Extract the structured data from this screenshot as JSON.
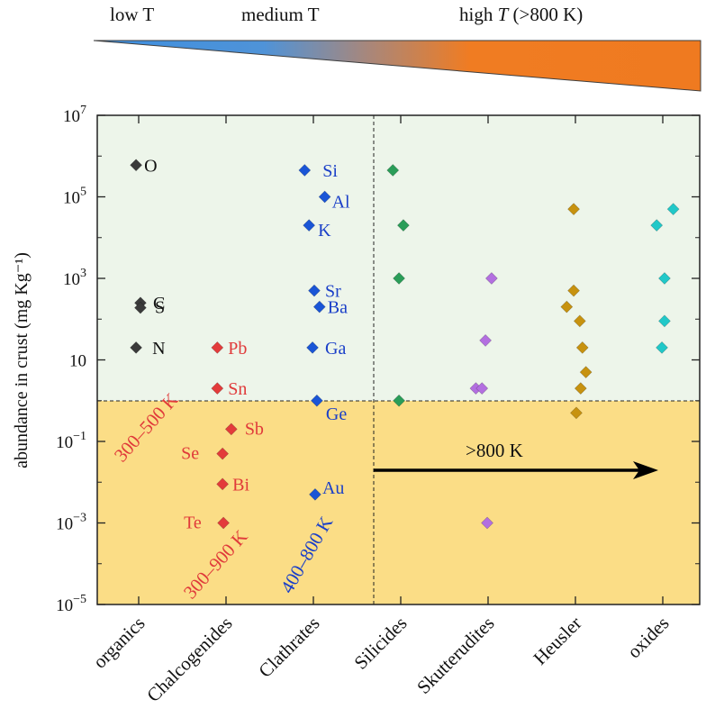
{
  "header": {
    "low": "low T",
    "medium": "medium T",
    "high_prefix": "high ",
    "high_T": "T",
    "high_suffix": " (>800 K)"
  },
  "colors": {
    "upper_band": "#edf5ea",
    "lower_band": "#fbdd86",
    "organics": "#3a3a3a",
    "chalcogenides": "#e33b3b",
    "clathrates": "#1a55d6",
    "silicides": "#2a9d58",
    "skutterudites": "#b36fe0",
    "heusler": "#c7920f",
    "oxides": "#21c8c8",
    "gradient_start": "#3d8fe0",
    "gradient_end": "#f07c22"
  },
  "chart_data": {
    "type": "scatter",
    "ylabel": "abundance in crust (mg Kg⁻¹)",
    "yscale": "log",
    "ylim": [
      1e-05,
      10000000.0
    ],
    "yticks": [
      {
        "base": "10",
        "exp": "7"
      },
      {
        "base": "10",
        "exp": "5"
      },
      {
        "base": "10",
        "exp": "3"
      },
      {
        "base": "10",
        "exp": ""
      },
      {
        "base": "10",
        "exp": "−1"
      },
      {
        "base": "10",
        "exp": "−3"
      },
      {
        "base": "10",
        "exp": "−5"
      }
    ],
    "categories": [
      "organics",
      "Chalcogenides",
      "Clathrates",
      "Silicides",
      "Skutterudites",
      "Heusler",
      "oxides"
    ],
    "threshold": 1,
    "annotations": {
      "organics_range": "300–500 K",
      "chalcogenides_range": "300–900 K",
      "clathrates_range": "400–800 K",
      "high_range": ">800 K"
    },
    "series": [
      {
        "name": "organics",
        "points": [
          {
            "category": 0,
            "offset": -0.03,
            "value": 600000,
            "label": "O"
          },
          {
            "category": 0,
            "offset": 0.02,
            "value": 250,
            "label": "C"
          },
          {
            "category": 0,
            "offset": 0.02,
            "value": 190,
            "label": "S"
          },
          {
            "category": 0,
            "offset": -0.03,
            "value": 20,
            "label": "N"
          }
        ]
      },
      {
        "name": "chalcogenides",
        "points": [
          {
            "category": 1,
            "offset": -0.1,
            "value": 20,
            "label": "Pb"
          },
          {
            "category": 1,
            "offset": -0.1,
            "value": 2,
            "label": "Sn"
          },
          {
            "category": 1,
            "offset": 0.06,
            "value": 0.2,
            "label": "Sb"
          },
          {
            "category": 1,
            "offset": -0.04,
            "value": 0.05,
            "label": "Se"
          },
          {
            "category": 1,
            "offset": -0.04,
            "value": 0.009,
            "label": "Bi"
          },
          {
            "category": 1,
            "offset": -0.03,
            "value": 0.001,
            "label": "Te"
          }
        ]
      },
      {
        "name": "clathrates",
        "points": [
          {
            "category": 2,
            "offset": -0.1,
            "value": 450000,
            "label": "Si"
          },
          {
            "category": 2,
            "offset": 0.13,
            "value": 100000,
            "label": "Al"
          },
          {
            "category": 2,
            "offset": -0.05,
            "value": 20000,
            "label": "K"
          },
          {
            "category": 2,
            "offset": 0.01,
            "value": 500,
            "label": "Sr"
          },
          {
            "category": 2,
            "offset": 0.07,
            "value": 200,
            "label": "Ba"
          },
          {
            "category": 2,
            "offset": -0.01,
            "value": 20,
            "label": "Ga"
          },
          {
            "category": 2,
            "offset": 0.04,
            "value": 1,
            "label": "Ge"
          },
          {
            "category": 2,
            "offset": 0.02,
            "value": 0.005,
            "label": "Au"
          }
        ]
      },
      {
        "name": "silicides",
        "points": [
          {
            "category": 3,
            "offset": -0.09,
            "value": 450000
          },
          {
            "category": 3,
            "offset": 0.03,
            "value": 20000
          },
          {
            "category": 3,
            "offset": -0.02,
            "value": 1000
          },
          {
            "category": 3,
            "offset": -0.02,
            "value": 1
          }
        ]
      },
      {
        "name": "skutterudites",
        "points": [
          {
            "category": 4,
            "offset": 0.04,
            "value": 1000
          },
          {
            "category": 4,
            "offset": -0.03,
            "value": 30
          },
          {
            "category": 4,
            "offset": -0.14,
            "value": 2
          },
          {
            "category": 4,
            "offset": -0.07,
            "value": 2
          },
          {
            "category": 4,
            "offset": -0.01,
            "value": 0.001
          }
        ]
      },
      {
        "name": "heusler",
        "points": [
          {
            "category": 5,
            "offset": -0.02,
            "value": 50000
          },
          {
            "category": 5,
            "offset": -0.02,
            "value": 500
          },
          {
            "category": 5,
            "offset": -0.1,
            "value": 200
          },
          {
            "category": 5,
            "offset": 0.05,
            "value": 90
          },
          {
            "category": 5,
            "offset": 0.08,
            "value": 20
          },
          {
            "category": 5,
            "offset": 0.12,
            "value": 5
          },
          {
            "category": 5,
            "offset": 0.06,
            "value": 2
          },
          {
            "category": 5,
            "offset": 0.01,
            "value": 0.5
          }
        ]
      },
      {
        "name": "oxides",
        "points": [
          {
            "category": 6,
            "offset": 0.12,
            "value": 50000
          },
          {
            "category": 6,
            "offset": -0.07,
            "value": 20000
          },
          {
            "category": 6,
            "offset": 0.02,
            "value": 1000
          },
          {
            "category": 6,
            "offset": 0.02,
            "value": 90
          },
          {
            "category": 6,
            "offset": -0.01,
            "value": 20
          }
        ]
      }
    ]
  }
}
